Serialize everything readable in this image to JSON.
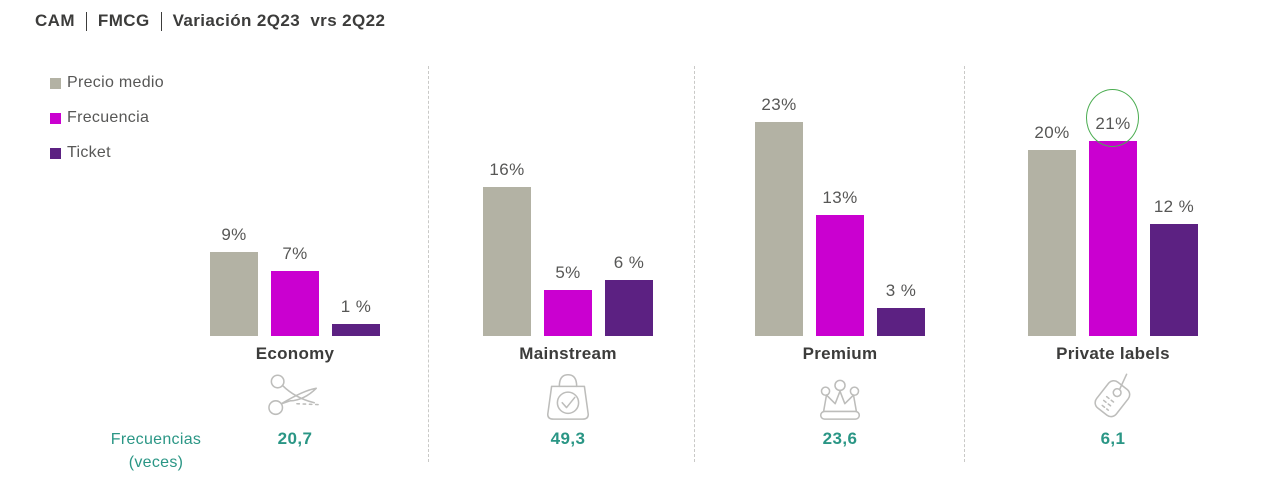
{
  "header": {
    "title_parts": [
      "CAM",
      "FMCG",
      "Variación 2Q23  vrs 2Q22"
    ]
  },
  "legend": {
    "items": [
      {
        "label": "Precio medio",
        "color": "#b3b2a4"
      },
      {
        "label": "Frecuencia",
        "color": "#ca00d0"
      },
      {
        "label": "Ticket",
        "color": "#5c2182"
      }
    ]
  },
  "chart_data": {
    "type": "bar",
    "title": "CAM | FMCG | Variación 2Q23 vrs 2Q22",
    "categories": [
      "Economy",
      "Mainstream",
      "Premium",
      "Private labels"
    ],
    "series": [
      {
        "name": "Precio medio",
        "color": "#b3b2a4",
        "values": [
          9,
          16,
          23,
          20
        ],
        "labels": [
          "9%",
          "16%",
          "23%",
          "20%"
        ]
      },
      {
        "name": "Frecuencia",
        "color": "#ca00d0",
        "values": [
          7,
          5,
          13,
          21
        ],
        "labels": [
          "7%",
          "5%",
          "13%",
          "21%"
        ]
      },
      {
        "name": "Ticket",
        "color": "#5c2182",
        "values": [
          1,
          6,
          3,
          12
        ],
        "labels": [
          "1 %",
          "6 %",
          "3 %",
          "12 %"
        ]
      }
    ],
    "unit": "%",
    "ylim": [
      0,
      25
    ],
    "grid": false,
    "legend_position": "top-left",
    "annotations": [
      {
        "type": "circle",
        "target": "Private labels — Frecuencia 21%",
        "color": "#4bad51"
      }
    ],
    "category_icons": [
      "scissors-icon",
      "shopping-bag-check-icon",
      "crown-icon",
      "price-tag-icon"
    ]
  },
  "footer": {
    "row_label_line1": "Frecuencias",
    "row_label_line2": "(veces)",
    "values": [
      "20,7",
      "49,3",
      "23,6",
      "6,1"
    ],
    "color": "#2a9685"
  }
}
